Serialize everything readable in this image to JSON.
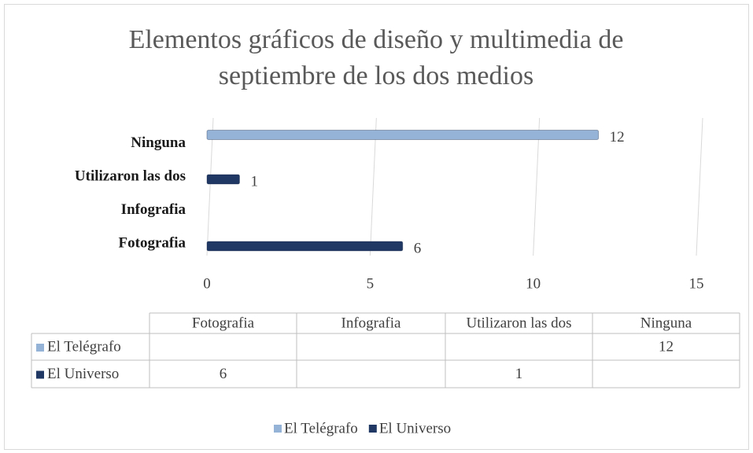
{
  "chart_data": {
    "type": "bar",
    "orientation": "horizontal",
    "title": "Elementos gráficos de diseño y multimedia de septiembre de los dos medios",
    "categories": [
      "Fotografia",
      "Infografia",
      "Utilizaron las dos",
      "Ninguna"
    ],
    "series": [
      {
        "name": "El Telégrafo",
        "color": "#95b3d7",
        "values": [
          null,
          null,
          null,
          12
        ]
      },
      {
        "name": "El Universo",
        "color": "#1f3864",
        "values": [
          6,
          null,
          1,
          null
        ]
      }
    ],
    "xlim": [
      0,
      15
    ],
    "xticks": [
      0,
      5,
      10,
      15
    ],
    "grid": true,
    "legend": "bottom",
    "data_table": true
  }
}
